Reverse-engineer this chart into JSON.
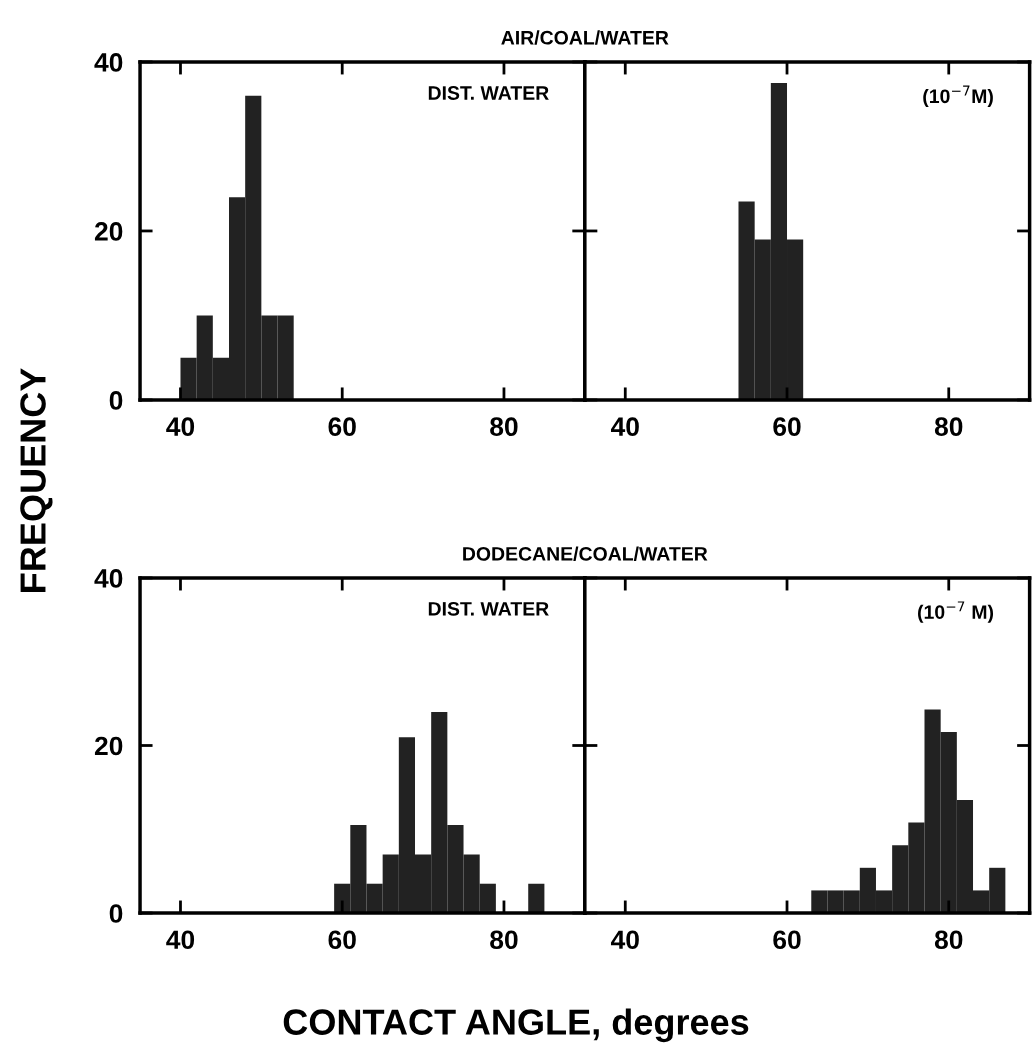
{
  "chart_data": [
    {
      "type": "histogram",
      "title": "AIR/COAL/WATER",
      "ylabel": "FREQUENCY",
      "annotations": [
        "DIST. WATER"
      ],
      "bins": [
        40,
        42,
        44,
        46,
        48,
        50,
        52,
        54
      ],
      "values": [
        5,
        10,
        5,
        24,
        36,
        10,
        10
      ],
      "color": "#222222",
      "xlim": [
        35,
        90
      ],
      "ylim": [
        0,
        40
      ],
      "xticks": [
        40,
        60,
        80
      ],
      "yticks": [
        0,
        20,
        40
      ],
      "grid": false
    },
    {
      "type": "histogram",
      "annotations": [
        "(10$^{−7}$M)"
      ],
      "bins": [
        54,
        56,
        58,
        60,
        62
      ],
      "values": [
        23.5,
        19,
        37.5,
        19
      ],
      "color": "#222222",
      "xlim": [
        35,
        90
      ],
      "ylim": [
        0,
        40
      ],
      "xticks": [
        40,
        60,
        80
      ],
      "yticks": [
        0,
        20,
        40
      ],
      "tick_labels": "x",
      "grid": false
    },
    {
      "type": "histogram",
      "title": "DODECANE/COAL/WATER",
      "xlabel": "CONTACT ANGLE, degrees",
      "annotations": [
        "DIST. WATER"
      ],
      "bins": [
        59,
        61,
        63,
        65,
        67,
        69,
        71,
        73,
        75,
        77,
        79,
        81,
        83,
        85
      ],
      "values": [
        3.5,
        10.5,
        3.5,
        7,
        21,
        7,
        24,
        10.5,
        7,
        3.5,
        0,
        0,
        3.5
      ],
      "color": "#222222",
      "xlim": [
        35,
        90
      ],
      "ylim": [
        0,
        40
      ],
      "xticks": [
        40,
        60,
        80
      ],
      "yticks": [
        0,
        20,
        40
      ],
      "grid": false
    },
    {
      "type": "histogram",
      "annotations": [
        "(10$^{−7}$ M)"
      ],
      "bins": [
        63,
        65,
        67,
        69,
        71,
        73,
        75,
        77,
        79,
        81,
        83,
        85,
        87
      ],
      "values": [
        2.7,
        2.7,
        2.7,
        5.4,
        2.7,
        8.1,
        10.8,
        24.3,
        21.6,
        13.5,
        2.7,
        5.4
      ],
      "color": "#222222",
      "xlim": [
        35,
        90
      ],
      "ylim": [
        0,
        40
      ],
      "xticks": [
        40,
        60,
        80
      ],
      "yticks": [
        0,
        20,
        40
      ],
      "tick_labels": "x",
      "grid": false
    }
  ]
}
